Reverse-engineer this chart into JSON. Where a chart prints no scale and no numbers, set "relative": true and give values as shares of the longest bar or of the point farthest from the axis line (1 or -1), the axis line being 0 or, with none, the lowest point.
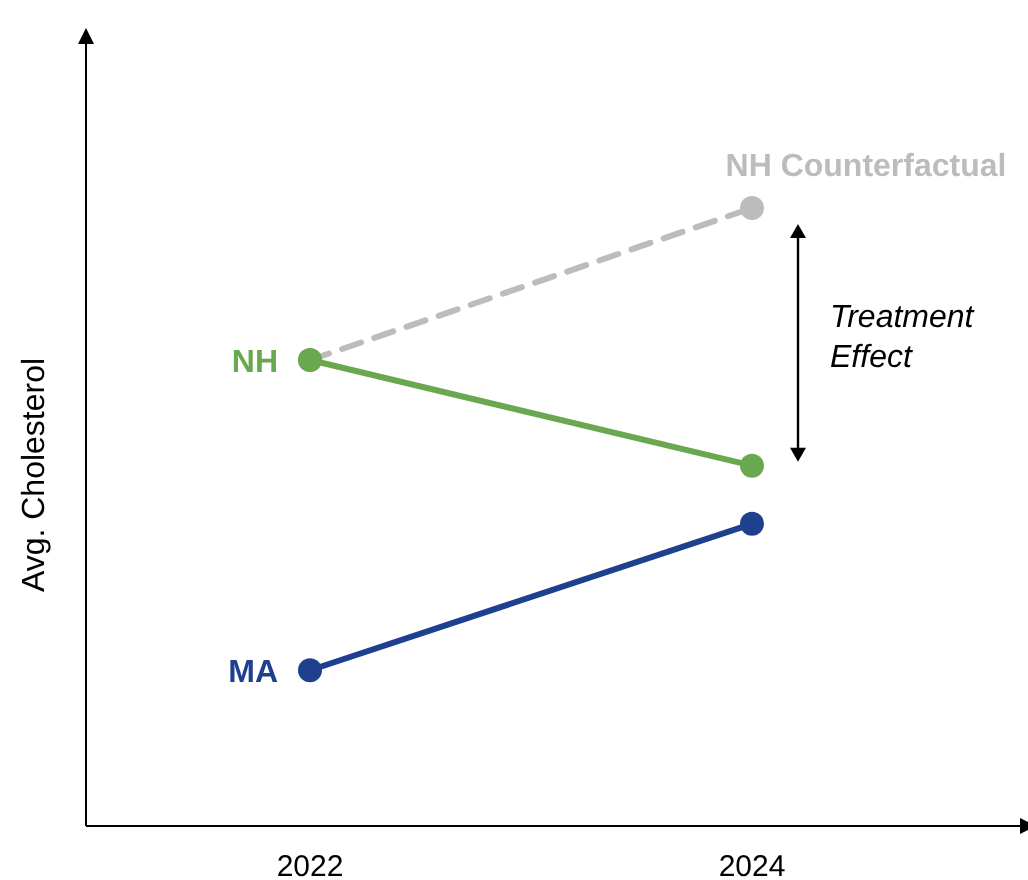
{
  "chart_data": {
    "type": "line",
    "relative": true,
    "ylabel": "Avg. Cholesterol",
    "categories": [
      "2022",
      "2024"
    ],
    "marker": "circle",
    "series": [
      {
        "name": "NH Counterfactual",
        "color": "#bcbcbc",
        "values": [
          0.754,
          1.0
        ],
        "line_style": "dashed"
      },
      {
        "name": "NH",
        "color": "#6aa84f",
        "values": [
          0.754,
          0.583
        ],
        "line_style": "solid"
      },
      {
        "name": "MA",
        "color": "#1f3f8f",
        "values": [
          0.252,
          0.489
        ],
        "line_style": "solid"
      }
    ],
    "annotations": [
      "Treatment Effect"
    ]
  }
}
